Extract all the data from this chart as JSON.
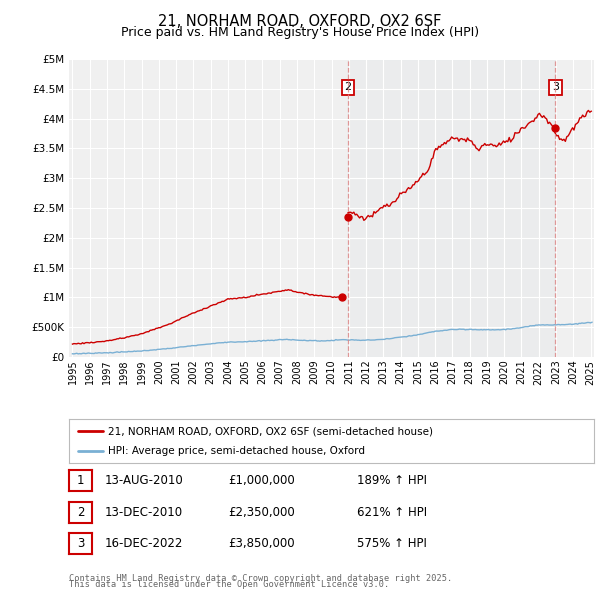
{
  "title_line1": "21, NORHAM ROAD, OXFORD, OX2 6SF",
  "title_line2": "Price paid vs. HM Land Registry's House Price Index (HPI)",
  "title_fontsize": 10.5,
  "subtitle_fontsize": 9,
  "background_color": "#ffffff",
  "plot_bg_color": "#f0f0f0",
  "grid_color": "#ffffff",
  "hpi_color": "#7ab0d4",
  "price_color": "#cc0000",
  "ylim": [
    0,
    5000000
  ],
  "yticks": [
    0,
    500000,
    1000000,
    1500000,
    2000000,
    2500000,
    3000000,
    3500000,
    4000000,
    4500000,
    5000000
  ],
  "ytick_labels": [
    "£0",
    "£500K",
    "£1M",
    "£1.5M",
    "£2M",
    "£2.5M",
    "£3M",
    "£3.5M",
    "£4M",
    "£4.5M",
    "£5M"
  ],
  "annotations": [
    {
      "num": "1",
      "date": "13-AUG-2010",
      "price": "£1,000,000",
      "pct": "189% ↑ HPI"
    },
    {
      "num": "2",
      "date": "13-DEC-2010",
      "price": "£2,350,000",
      "pct": "621% ↑ HPI"
    },
    {
      "num": "3",
      "date": "16-DEC-2022",
      "price": "£3,850,000",
      "pct": "575% ↑ HPI"
    }
  ],
  "legend_property": "21, NORHAM ROAD, OXFORD, OX2 6SF (semi-detached house)",
  "legend_hpi": "HPI: Average price, semi-detached house, Oxford",
  "footer_line1": "Contains HM Land Registry data © Crown copyright and database right 2025.",
  "footer_line2": "This data is licensed under the Open Government Licence v3.0.",
  "xmin_year": 1995,
  "xmax_year": 2025,
  "xtick_years": [
    1995,
    1996,
    1997,
    1998,
    1999,
    2000,
    2001,
    2002,
    2003,
    2004,
    2005,
    2006,
    2007,
    2008,
    2009,
    2010,
    2011,
    2012,
    2013,
    2014,
    2015,
    2016,
    2017,
    2018,
    2019,
    2020,
    2021,
    2022,
    2023,
    2024,
    2025
  ],
  "sale1_year": 2010.625,
  "sale1_price": 1000000,
  "sale2_year": 2010.958,
  "sale2_price": 2350000,
  "sale3_year": 2022.958,
  "sale3_price": 3850000,
  "hpi_anchors_x": [
    1995.0,
    1997.0,
    1999.0,
    2000.5,
    2002.0,
    2003.0,
    2004.0,
    2005.0,
    2006.0,
    2007.5,
    2008.5,
    2009.5,
    2010.0,
    2010.5,
    2011.0,
    2012.0,
    2013.0,
    2014.0,
    2015.0,
    2016.0,
    2017.0,
    2018.0,
    2019.0,
    2020.0,
    2021.0,
    2022.0,
    2023.0,
    2024.0,
    2025.0
  ],
  "hpi_anchors_y": [
    55000,
    70000,
    100000,
    140000,
    190000,
    220000,
    250000,
    255000,
    270000,
    295000,
    275000,
    270000,
    275000,
    290000,
    285000,
    280000,
    295000,
    330000,
    370000,
    430000,
    460000,
    460000,
    455000,
    460000,
    490000,
    540000,
    540000,
    550000,
    580000
  ],
  "prop_anchors1_x": [
    1995.0,
    1997.0,
    1999.0,
    2000.5,
    2002.0,
    2003.0,
    2004.0,
    2005.0,
    2006.0,
    2007.5,
    2008.5,
    2009.5,
    2010.625
  ],
  "prop_anchors1_y": [
    210000,
    265000,
    390000,
    545000,
    740000,
    850000,
    960000,
    990000,
    1040000,
    1140000,
    1060000,
    1030000,
    1000000
  ],
  "prop_anchors2_x": [
    2010.958,
    2011.5,
    2012.0,
    2012.5,
    2013.0,
    2013.5,
    2014.0,
    2014.5,
    2015.0,
    2015.5,
    2016.0,
    2016.5,
    2017.0,
    2017.5,
    2018.0,
    2018.5,
    2019.0,
    2019.5,
    2020.0,
    2020.5,
    2021.0,
    2021.5,
    2022.0,
    2022.5,
    2022.958,
    2023.0,
    2023.5,
    2024.0,
    2024.5,
    2025.0
  ],
  "prop_anchors2_y": [
    2350000,
    2300000,
    2280000,
    2350000,
    2450000,
    2500000,
    2650000,
    2750000,
    2950000,
    3100000,
    3450000,
    3550000,
    3650000,
    3650000,
    3650000,
    3500000,
    3600000,
    3550000,
    3600000,
    3700000,
    3850000,
    3950000,
    4100000,
    4050000,
    3850000,
    3800000,
    3700000,
    3900000,
    4100000,
    4200000
  ]
}
